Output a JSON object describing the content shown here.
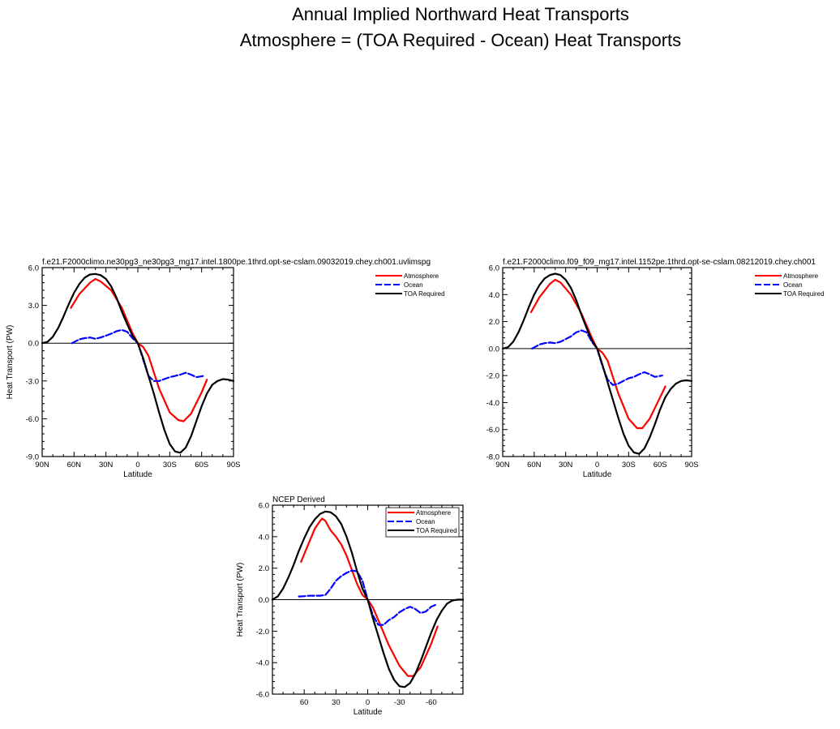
{
  "figure": {
    "title_line1": "Annual Implied Northward Heat Transports",
    "title_line2": "Atmosphere = (TOA Required - Ocean) Heat Transports"
  },
  "colors": {
    "atmosphere": "#ff0000",
    "ocean": "#0000ff",
    "toa": "#000000"
  },
  "chart_data": [
    {
      "type": "line",
      "title": "f.e21.F2000climo.ne30pg3_ne30pg3_mg17.intel.1800pe.1thrd.opt-se-cslam.09032019.chey.ch001.uvlimspg",
      "xlabel": "Latitude",
      "ylabel": "Heat Transport (PW)",
      "xlim": [
        90,
        -90
      ],
      "ylim": [
        -9,
        6
      ],
      "xticks": [
        90,
        60,
        30,
        0,
        -30,
        -60,
        -90
      ],
      "xtick_labels": [
        "90N",
        "60N",
        "30N",
        "0",
        "30S",
        "60S",
        "90S"
      ],
      "yticks": [
        6,
        3,
        0,
        -3,
        -6,
        -9
      ],
      "ytick_labels": [
        "6.0",
        "3.0",
        "0.0",
        "-3.0",
        "-6.0",
        "-9.0"
      ],
      "legend": "top-right",
      "series": [
        {
          "name": "Atmosphere",
          "color": "#ff0000",
          "dash": "",
          "x": [
            63,
            55,
            45,
            40,
            35,
            25,
            15,
            5,
            0,
            -5,
            -10,
            -20,
            -30,
            -38,
            -43,
            -50,
            -60,
            -65
          ],
          "y": [
            2.8,
            3.9,
            4.8,
            5.1,
            4.9,
            4.2,
            2.8,
            0.8,
            0.0,
            -0.3,
            -1.0,
            -3.6,
            -5.5,
            -6.1,
            -6.2,
            -5.6,
            -3.9,
            -2.9
          ]
        },
        {
          "name": "Ocean",
          "color": "#0000ff",
          "dash": "8,3",
          "x": [
            62,
            55,
            50,
            45,
            40,
            35,
            30,
            25,
            20,
            15,
            10,
            5,
            0,
            -5,
            -10,
            -15,
            -20,
            -30,
            -35,
            -40,
            -45,
            -50,
            -55,
            -62
          ],
          "y": [
            0.0,
            0.3,
            0.4,
            0.45,
            0.35,
            0.45,
            0.6,
            0.75,
            0.95,
            1.05,
            0.9,
            0.4,
            0.0,
            -1.3,
            -2.6,
            -3.0,
            -3.0,
            -2.7,
            -2.6,
            -2.5,
            -2.35,
            -2.5,
            -2.7,
            -2.6
          ]
        },
        {
          "name": "TOA Required",
          "color": "#000000",
          "dash": "",
          "x": [
            90,
            85,
            80,
            75,
            70,
            65,
            60,
            55,
            50,
            45,
            40,
            35,
            30,
            25,
            20,
            15,
            10,
            5,
            0,
            -5,
            -10,
            -15,
            -20,
            -25,
            -30,
            -35,
            -40,
            -45,
            -50,
            -55,
            -60,
            -65,
            -70,
            -75,
            -80,
            -85,
            -90
          ],
          "y": [
            0.0,
            0.1,
            0.5,
            1.2,
            2.1,
            3.1,
            4.0,
            4.7,
            5.2,
            5.45,
            5.5,
            5.4,
            5.1,
            4.5,
            3.6,
            2.5,
            1.5,
            0.6,
            0.0,
            -1.2,
            -2.6,
            -4.0,
            -5.5,
            -6.9,
            -8.0,
            -8.6,
            -8.7,
            -8.3,
            -7.4,
            -6.2,
            -5.0,
            -4.0,
            -3.3,
            -3.0,
            -2.85,
            -2.9,
            -3.0
          ]
        }
      ]
    },
    {
      "type": "line",
      "title": "f.e21.F2000climo.f09_f09_mg17.intel.1152pe.1thrd.opt-se-cslam.08212019.chey.ch001",
      "xlabel": "Latitude",
      "ylabel": "",
      "xlim": [
        90,
        -90
      ],
      "ylim": [
        -8,
        6
      ],
      "xticks": [
        90,
        60,
        30,
        0,
        -30,
        -60,
        -90
      ],
      "xtick_labels": [
        "90N",
        "60N",
        "30N",
        "0",
        "30S",
        "60S",
        "90S"
      ],
      "yticks": [
        6,
        4,
        2,
        0,
        -2,
        -4,
        -6,
        -8
      ],
      "ytick_labels": [
        "6.0",
        "4.0",
        "2.0",
        "0.0",
        "-2.0",
        "-4.0",
        "-6.0",
        "-8.0"
      ],
      "legend": "top-right",
      "series": [
        {
          "name": "Atmosphere",
          "color": "#ff0000",
          "dash": "",
          "x": [
            63,
            55,
            45,
            40,
            35,
            25,
            15,
            5,
            0,
            -5,
            -10,
            -20,
            -30,
            -38,
            -43,
            -50,
            -60,
            -65
          ],
          "y": [
            2.7,
            3.8,
            4.8,
            5.1,
            4.9,
            4.0,
            2.6,
            0.8,
            0.0,
            -0.3,
            -0.9,
            -3.3,
            -5.2,
            -5.9,
            -5.9,
            -5.2,
            -3.6,
            -2.8
          ]
        },
        {
          "name": "Ocean",
          "color": "#0000ff",
          "dash": "8,3",
          "x": [
            62,
            55,
            50,
            45,
            40,
            35,
            30,
            25,
            20,
            15,
            10,
            5,
            0,
            -5,
            -10,
            -15,
            -20,
            -30,
            -35,
            -40,
            -45,
            -50,
            -55,
            -62
          ],
          "y": [
            0.0,
            0.3,
            0.4,
            0.45,
            0.4,
            0.5,
            0.7,
            0.9,
            1.2,
            1.35,
            1.2,
            0.5,
            0.0,
            -1.3,
            -2.3,
            -2.7,
            -2.6,
            -2.2,
            -2.1,
            -1.9,
            -1.75,
            -1.9,
            -2.1,
            -2.0
          ]
        },
        {
          "name": "TOA Required",
          "color": "#000000",
          "dash": "",
          "x": [
            90,
            85,
            80,
            75,
            70,
            65,
            60,
            55,
            50,
            45,
            40,
            35,
            30,
            25,
            20,
            15,
            10,
            5,
            0,
            -5,
            -10,
            -15,
            -20,
            -25,
            -30,
            -35,
            -40,
            -45,
            -50,
            -55,
            -60,
            -65,
            -70,
            -75,
            -80,
            -85,
            -90
          ],
          "y": [
            0.0,
            0.1,
            0.5,
            1.2,
            2.1,
            3.1,
            4.0,
            4.7,
            5.2,
            5.45,
            5.55,
            5.45,
            5.1,
            4.5,
            3.6,
            2.5,
            1.5,
            0.6,
            0.0,
            -1.2,
            -2.5,
            -3.8,
            -5.1,
            -6.3,
            -7.2,
            -7.7,
            -7.8,
            -7.4,
            -6.6,
            -5.6,
            -4.5,
            -3.6,
            -3.0,
            -2.6,
            -2.4,
            -2.35,
            -2.4
          ]
        }
      ]
    },
    {
      "type": "line",
      "title": "NCEP Derived",
      "xlabel": "Latitude",
      "ylabel": "Heat Transport (PW)",
      "xlim": [
        90,
        -90
      ],
      "ylim": [
        -6,
        6
      ],
      "xticks": [
        60,
        30,
        0,
        -30,
        -60
      ],
      "xtick_labels": [
        "60",
        "30",
        "0",
        "-30",
        "-60"
      ],
      "yticks": [
        6,
        4,
        2,
        0,
        -2,
        -4,
        -6
      ],
      "ytick_labels": [
        "6.0",
        "4.0",
        "2.0",
        "0.0",
        "-2.0",
        "-4.0",
        "-6.0"
      ],
      "legend": "top-right",
      "series": [
        {
          "name": "Atmosphere",
          "color": "#ff0000",
          "dash": "",
          "x": [
            63,
            55,
            50,
            45,
            43,
            40,
            35,
            30,
            25,
            20,
            15,
            10,
            5,
            0,
            -5,
            -10,
            -20,
            -30,
            -38,
            -43,
            -50,
            -60,
            -66
          ],
          "y": [
            2.4,
            3.7,
            4.5,
            5.0,
            5.15,
            5.0,
            4.4,
            4.0,
            3.5,
            2.8,
            1.9,
            1.0,
            0.3,
            0.0,
            -0.5,
            -1.3,
            -2.9,
            -4.2,
            -4.85,
            -4.85,
            -4.3,
            -2.8,
            -1.7
          ]
        },
        {
          "name": "Ocean",
          "color": "#0000ff",
          "dash": "8,3",
          "x": [
            65,
            60,
            55,
            50,
            45,
            40,
            35,
            30,
            25,
            20,
            15,
            10,
            5,
            0,
            -5,
            -10,
            -15,
            -20,
            -25,
            -30,
            -35,
            -40,
            -45,
            -50,
            -55,
            -60,
            -65
          ],
          "y": [
            0.2,
            0.22,
            0.25,
            0.25,
            0.25,
            0.3,
            0.7,
            1.2,
            1.5,
            1.7,
            1.85,
            1.8,
            1.2,
            0.0,
            -1.0,
            -1.6,
            -1.6,
            -1.3,
            -1.1,
            -0.8,
            -0.6,
            -0.45,
            -0.6,
            -0.85,
            -0.75,
            -0.45,
            -0.3
          ]
        },
        {
          "name": "TOA Required",
          "color": "#000000",
          "dash": "",
          "x": [
            90,
            85,
            80,
            75,
            70,
            65,
            60,
            55,
            50,
            45,
            40,
            35,
            30,
            25,
            20,
            15,
            10,
            5,
            0,
            -5,
            -10,
            -15,
            -20,
            -25,
            -30,
            -35,
            -40,
            -45,
            -50,
            -55,
            -60,
            -65,
            -70,
            -75,
            -80,
            -85,
            -90
          ],
          "y": [
            0.0,
            0.2,
            0.7,
            1.4,
            2.2,
            3.1,
            3.9,
            4.6,
            5.1,
            5.45,
            5.6,
            5.55,
            5.3,
            4.8,
            4.0,
            3.0,
            1.8,
            0.7,
            0.0,
            -1.2,
            -2.3,
            -3.4,
            -4.4,
            -5.1,
            -5.5,
            -5.55,
            -5.3,
            -4.7,
            -3.9,
            -3.0,
            -2.1,
            -1.3,
            -0.7,
            -0.25,
            -0.05,
            0.0,
            0.0
          ]
        }
      ]
    }
  ]
}
